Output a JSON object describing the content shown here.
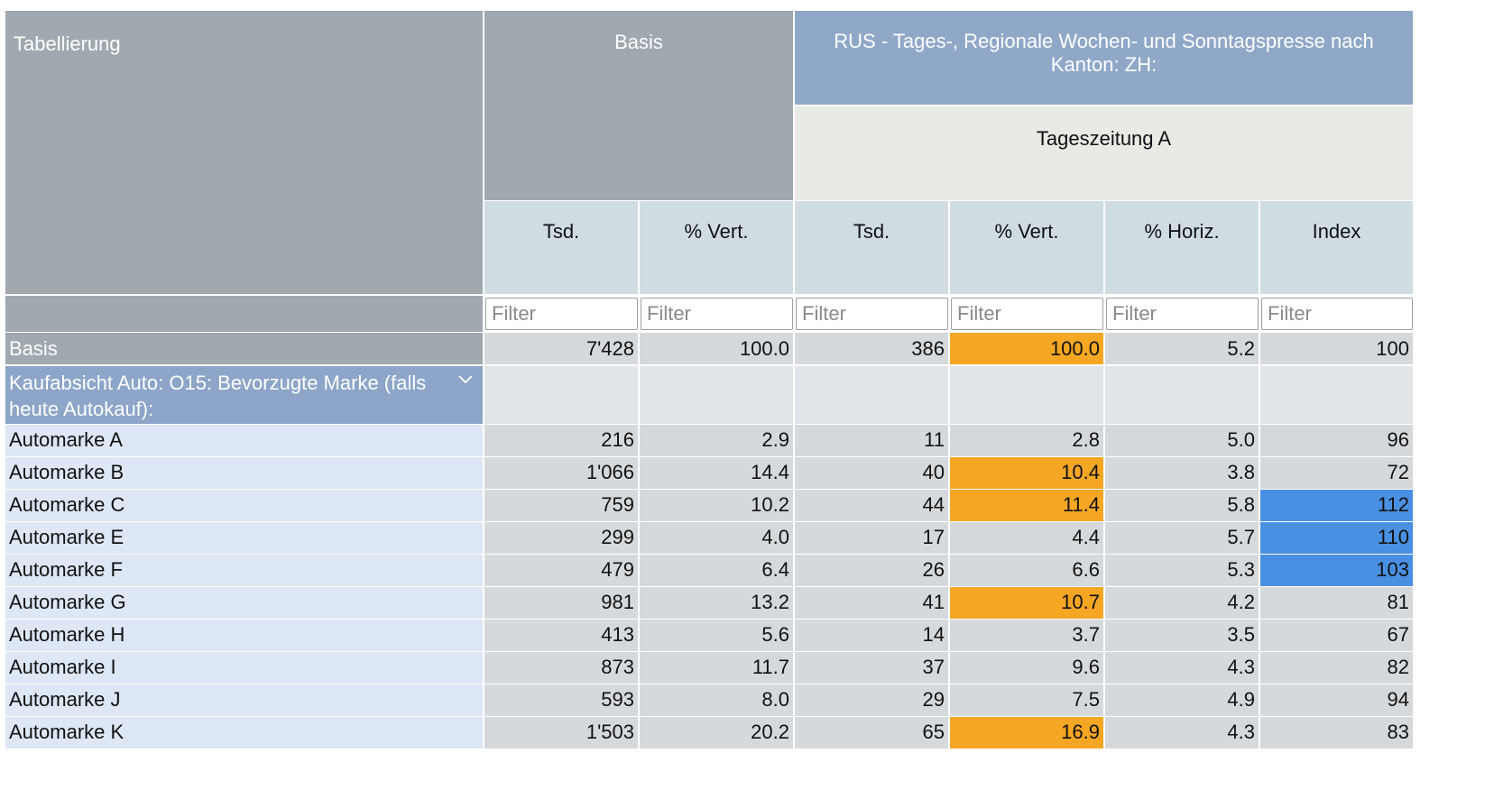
{
  "header": {
    "tabellierung": "Tabellierung",
    "basis": "Basis",
    "rus_title": "RUS - Tages-, Regionale Wochen- und Sonntagspresse nach Kanton: ZH:",
    "tageszeitung": "Tageszeitung A",
    "columns": [
      "Tsd.",
      "% Vert.",
      "Tsd.",
      "% Vert.",
      "% Horiz.",
      "Index"
    ],
    "filter_placeholder": "Filter"
  },
  "basis_row": {
    "label": "Basis",
    "values": [
      "7'428",
      "100.0",
      "386",
      "100.0",
      "5.2",
      "100"
    ]
  },
  "category": {
    "label": "Kaufabsicht Auto: O15: Bevorzugte Marke (falls heute Autokauf):",
    "icon": "chevron-down-icon"
  },
  "rows": [
    {
      "label": "Automarke A",
      "values": [
        "216",
        "2.9",
        "11",
        "2.8",
        "5.0",
        "96"
      ]
    },
    {
      "label": "Automarke B",
      "values": [
        "1'066",
        "14.4",
        "40",
        "10.4",
        "3.8",
        "72"
      ]
    },
    {
      "label": "Automarke C",
      "values": [
        "759",
        "10.2",
        "44",
        "11.4",
        "5.8",
        "112"
      ]
    },
    {
      "label": "Automarke E",
      "values": [
        "299",
        "4.0",
        "17",
        "4.4",
        "5.7",
        "110"
      ]
    },
    {
      "label": "Automarke F",
      "values": [
        "479",
        "6.4",
        "26",
        "6.6",
        "5.3",
        "103"
      ]
    },
    {
      "label": "Automarke G",
      "values": [
        "981",
        "13.2",
        "41",
        "10.7",
        "4.2",
        "81"
      ]
    },
    {
      "label": "Automarke H",
      "values": [
        "413",
        "5.6",
        "14",
        "3.7",
        "3.5",
        "67"
      ]
    },
    {
      "label": "Automarke I",
      "values": [
        "873",
        "11.7",
        "37",
        "9.6",
        "4.3",
        "82"
      ]
    },
    {
      "label": "Automarke J",
      "values": [
        "593",
        "8.0",
        "29",
        "7.5",
        "4.9",
        "94"
      ]
    },
    {
      "label": "Automarke K",
      "values": [
        "1'503",
        "20.2",
        "65",
        "16.9",
        "4.3",
        "83"
      ]
    }
  ],
  "colors": {
    "highlight_orange": "#f5a623",
    "highlight_blue": "#4a90e2",
    "header_gray": "#a0a8b0",
    "header_blue": "#90a8c8"
  }
}
